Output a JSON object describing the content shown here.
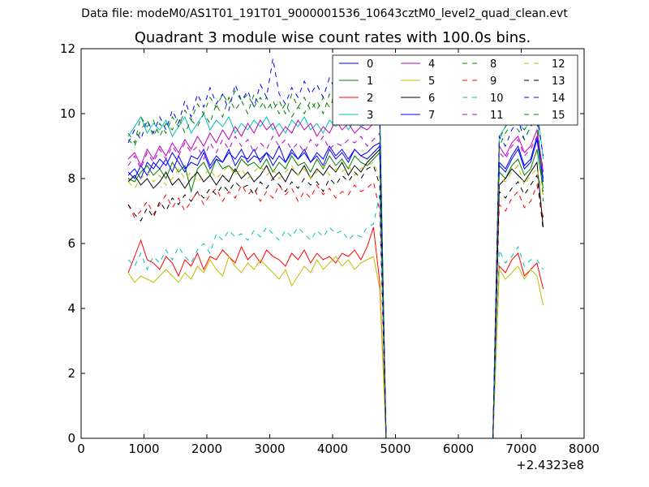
{
  "header": {
    "data_file": "Data file: modeM0/AS1T01_191T01_9000001536_10643cztM0_level2_quad_clean.evt"
  },
  "chart_data": {
    "type": "line",
    "title": "Quadrant 3 module wise count rates with 100.0s bins.",
    "xlabel": "",
    "ylabel": "",
    "x_offset_label": "+2.4323e8",
    "xlim": [
      0,
      8000
    ],
    "ylim": [
      0,
      12
    ],
    "xticks": [
      0,
      1000,
      2000,
      3000,
      4000,
      5000,
      6000,
      7000,
      8000
    ],
    "yticks": [
      0,
      2,
      4,
      6,
      8,
      10,
      12
    ],
    "grid": false,
    "legend_position": "top-right",
    "legend_columns": 4,
    "x_first": 750,
    "x_step": 100,
    "series": [
      {
        "name": "0",
        "color": "#0000ff",
        "dashed": false,
        "values": [
          8.1,
          8.3,
          8.0,
          8.5,
          8.3,
          8.6,
          8.4,
          8.8,
          8.5,
          8.2,
          8.7,
          8.6,
          8.9,
          8.4,
          8.7,
          8.5,
          8.8,
          8.6,
          8.9,
          8.5,
          8.7,
          8.6,
          8.8,
          8.4,
          8.7,
          8.5,
          8.9,
          8.6,
          8.8,
          8.5,
          8.7,
          8.4,
          8.9,
          8.6,
          8.8,
          8.5,
          8.9,
          8.7,
          8.6,
          8.8,
          9.0,
          0,
          0,
          0,
          0,
          0,
          0,
          0,
          0,
          0,
          0,
          0,
          0,
          0,
          0,
          0,
          0,
          0,
          0,
          8.4,
          8.2,
          8.6,
          8.9,
          8.3,
          8.5,
          9.2,
          7.9
        ]
      },
      {
        "name": "1",
        "color": "#008000",
        "dashed": false,
        "values": [
          8.0,
          7.9,
          8.2,
          8.4,
          8.1,
          8.3,
          8.0,
          8.5,
          8.2,
          8.4,
          7.6,
          8.3,
          8.5,
          8.1,
          8.6,
          8.3,
          8.4,
          8.2,
          8.6,
          8.4,
          8.5,
          8.3,
          8.6,
          8.2,
          8.5,
          8.3,
          8.7,
          8.4,
          8.5,
          8.2,
          8.6,
          8.3,
          8.7,
          8.4,
          8.6,
          8.3,
          8.7,
          8.5,
          8.4,
          8.6,
          8.8,
          0,
          0,
          0,
          0,
          0,
          0,
          0,
          0,
          0,
          0,
          0,
          0,
          0,
          0,
          0,
          0,
          0,
          0,
          8.2,
          8.0,
          8.4,
          8.6,
          8.1,
          8.3,
          8.9,
          7.7
        ]
      },
      {
        "name": "2",
        "color": "#ff0000",
        "dashed": false,
        "values": [
          5.1,
          5.6,
          6.1,
          5.5,
          5.4,
          5.2,
          5.6,
          5.4,
          5.0,
          5.5,
          5.3,
          5.7,
          5.2,
          5.6,
          5.5,
          5.8,
          5.6,
          5.4,
          5.9,
          5.5,
          5.7,
          5.4,
          5.8,
          5.6,
          5.5,
          5.3,
          5.7,
          5.5,
          5.8,
          5.4,
          5.7,
          5.5,
          5.6,
          5.4,
          5.7,
          5.6,
          5.8,
          5.5,
          5.9,
          6.5,
          4.8,
          0,
          0,
          0,
          0,
          0,
          0,
          0,
          0,
          0,
          0,
          0,
          0,
          0,
          0,
          0,
          0,
          0,
          0,
          5.3,
          5.1,
          5.5,
          5.7,
          5.0,
          5.2,
          5.4,
          4.6
        ]
      },
      {
        "name": "3",
        "color": "#00bfbf",
        "dashed": false,
        "values": [
          9.3,
          9.6,
          9.9,
          9.4,
          9.7,
          9.5,
          9.8,
          9.3,
          9.6,
          9.9,
          9.4,
          9.7,
          10.0,
          9.5,
          9.8,
          9.6,
          9.9,
          9.4,
          9.7,
          9.5,
          9.8,
          9.6,
          9.9,
          9.5,
          9.7,
          9.4,
          9.8,
          9.6,
          9.9,
          9.5,
          9.7,
          9.4,
          9.8,
          9.6,
          9.9,
          9.5,
          9.8,
          9.6,
          9.7,
          9.9,
          10.3,
          0,
          0,
          0,
          0,
          0,
          0,
          0,
          0,
          0,
          0,
          0,
          0,
          0,
          0,
          0,
          0,
          0,
          0,
          9.3,
          9.6,
          9.9,
          9.7,
          9.5,
          9.8,
          10.2,
          8.6
        ]
      },
      {
        "name": "4",
        "color": "#bf00bf",
        "dashed": false,
        "values": [
          8.6,
          8.8,
          8.4,
          8.9,
          8.6,
          9.0,
          8.7,
          9.1,
          8.8,
          9.2,
          8.9,
          9.3,
          9.0,
          9.4,
          9.1,
          9.5,
          9.2,
          9.6,
          9.3,
          9.7,
          9.4,
          9.8,
          9.5,
          9.7,
          9.3,
          9.6,
          9.4,
          9.8,
          9.5,
          9.7,
          9.3,
          9.6,
          9.4,
          9.8,
          9.5,
          9.7,
          9.4,
          9.6,
          9.5,
          9.7,
          9.9,
          0,
          0,
          0,
          0,
          0,
          0,
          0,
          0,
          0,
          0,
          0,
          0,
          0,
          0,
          0,
          0,
          0,
          0,
          9.0,
          8.7,
          9.1,
          9.3,
          8.8,
          9.0,
          9.5,
          8.2
        ]
      },
      {
        "name": "5",
        "color": "#bfbf00",
        "dashed": false,
        "values": [
          5.1,
          4.8,
          5.0,
          4.9,
          4.8,
          5.0,
          5.2,
          5.0,
          4.8,
          5.1,
          4.9,
          5.3,
          5.1,
          5.5,
          5.2,
          5.0,
          5.6,
          5.3,
          5.1,
          5.4,
          5.2,
          5.5,
          5.3,
          5.1,
          4.9,
          5.2,
          4.7,
          5.0,
          5.3,
          5.1,
          5.5,
          5.2,
          5.4,
          5.6,
          5.3,
          5.5,
          5.2,
          5.4,
          5.5,
          5.6,
          4.6,
          0,
          0,
          0,
          0,
          0,
          0,
          0,
          0,
          0,
          0,
          0,
          0,
          0,
          0,
          0,
          0,
          0,
          0,
          5.2,
          4.9,
          5.1,
          5.3,
          4.9,
          5.2,
          5.0,
          4.1
        ]
      },
      {
        "name": "6",
        "color": "#000000",
        "dashed": false,
        "values": [
          7.9,
          8.1,
          7.8,
          8.0,
          7.7,
          7.9,
          8.2,
          7.8,
          8.0,
          7.7,
          8.0,
          8.2,
          7.9,
          8.1,
          7.8,
          8.1,
          7.9,
          8.3,
          8.0,
          8.2,
          7.9,
          8.1,
          8.4,
          8.0,
          8.2,
          7.9,
          8.3,
          8.1,
          8.4,
          8.0,
          8.3,
          8.1,
          8.4,
          8.2,
          8.5,
          8.1,
          8.4,
          8.2,
          8.5,
          8.7,
          8.9,
          0,
          0,
          0,
          0,
          0,
          0,
          0,
          0,
          0,
          0,
          0,
          0,
          0,
          0,
          0,
          0,
          0,
          0,
          7.8,
          8.0,
          8.3,
          8.1,
          7.9,
          8.2,
          8.5,
          6.5
        ]
      },
      {
        "name": "7",
        "color": "#0000ff",
        "dashed": false,
        "values": [
          8.2,
          8.0,
          8.4,
          8.1,
          8.5,
          8.3,
          8.6,
          8.2,
          8.7,
          8.3,
          8.5,
          8.4,
          8.8,
          8.3,
          8.6,
          8.5,
          8.9,
          8.4,
          8.7,
          8.6,
          8.9,
          8.5,
          8.8,
          8.6,
          9.0,
          8.5,
          8.8,
          8.6,
          8.9,
          8.5,
          8.8,
          8.6,
          9.0,
          8.7,
          8.9,
          8.6,
          8.9,
          8.7,
          8.8,
          9.0,
          9.1,
          0,
          0,
          0,
          0,
          0,
          0,
          0,
          0,
          0,
          0,
          0,
          0,
          0,
          0,
          0,
          0,
          0,
          0,
          8.5,
          8.3,
          8.7,
          9.0,
          8.4,
          8.6,
          9.3,
          8.0
        ]
      },
      {
        "name": "8",
        "color": "#008000",
        "dashed": true,
        "values": [
          9.4,
          9.1,
          9.9,
          9.6,
          9.8,
          9.3,
          9.7,
          9.5,
          9.9,
          9.4,
          9.8,
          9.6,
          10.0,
          9.7,
          10.3,
          9.9,
          10.5,
          10.1,
          10.4,
          10.0,
          10.6,
          10.2,
          10.5,
          10.1,
          10.4,
          10.0,
          10.6,
          10.2,
          10.5,
          10.1,
          10.4,
          10.0,
          10.6,
          10.2,
          10.5,
          10.1,
          10.4,
          10.2,
          10.5,
          10.6,
          10.0,
          0,
          0,
          0,
          0,
          0,
          0,
          0,
          0,
          0,
          0,
          0,
          0,
          0,
          0,
          0,
          0,
          0,
          0,
          9.2,
          9.6,
          9.9,
          9.7,
          9.5,
          9.8,
          10.0,
          7.3
        ]
      },
      {
        "name": "9",
        "color": "#ff0000",
        "dashed": true,
        "values": [
          7.2,
          6.8,
          7.0,
          7.3,
          6.9,
          7.2,
          7.5,
          7.1,
          7.4,
          7.0,
          7.3,
          7.6,
          7.2,
          7.5,
          7.7,
          7.3,
          7.6,
          7.4,
          7.8,
          7.5,
          7.7,
          7.3,
          7.6,
          7.4,
          7.8,
          7.5,
          7.7,
          7.3,
          7.6,
          7.4,
          7.8,
          7.5,
          7.7,
          7.4,
          7.6,
          7.5,
          7.8,
          7.6,
          7.7,
          7.9,
          7.0,
          0,
          0,
          0,
          0,
          0,
          0,
          0,
          0,
          0,
          0,
          0,
          0,
          0,
          0,
          0,
          0,
          0,
          0,
          7.2,
          7.0,
          7.4,
          7.6,
          7.1,
          7.3,
          7.8,
          6.8
        ]
      },
      {
        "name": "10",
        "color": "#00bfbf",
        "dashed": true,
        "values": [
          5.5,
          5.3,
          5.7,
          5.2,
          5.6,
          5.4,
          5.8,
          5.5,
          5.9,
          5.6,
          5.4,
          5.8,
          6.0,
          5.7,
          6.3,
          6.1,
          6.4,
          6.2,
          6.3,
          6.1,
          6.4,
          6.2,
          6.5,
          6.3,
          6.1,
          6.4,
          6.2,
          6.5,
          6.3,
          6.1,
          6.4,
          6.2,
          6.5,
          6.3,
          6.4,
          6.1,
          6.3,
          6.2,
          6.5,
          6.6,
          7.5,
          0,
          0,
          0,
          0,
          0,
          0,
          0,
          0,
          0,
          0,
          0,
          0,
          0,
          0,
          0,
          0,
          0,
          0,
          5.8,
          5.4,
          5.6,
          5.9,
          5.3,
          5.5,
          5.5,
          5.2
        ]
      },
      {
        "name": "11",
        "color": "#bf00bf",
        "dashed": true,
        "values": [
          8.4,
          8.7,
          8.3,
          8.8,
          8.5,
          8.9,
          8.6,
          9.0,
          8.7,
          9.1,
          8.8,
          9.0,
          8.6,
          9.1,
          8.8,
          9.2,
          8.9,
          9.3,
          9.0,
          9.2,
          8.8,
          9.1,
          8.9,
          9.3,
          9.0,
          9.2,
          8.9,
          9.1,
          8.8,
          9.2,
          9.0,
          9.3,
          8.9,
          9.1,
          9.0,
          9.2,
          9.1,
          9.3,
          9.0,
          9.2,
          9.4,
          0,
          0,
          0,
          0,
          0,
          0,
          0,
          0,
          0,
          0,
          0,
          0,
          0,
          0,
          0,
          0,
          0,
          0,
          8.8,
          8.6,
          9.0,
          9.2,
          8.7,
          8.9,
          9.3,
          8.3
        ]
      },
      {
        "name": "12",
        "color": "#bfbf00",
        "dashed": true,
        "values": [
          7.9,
          7.7,
          8.0,
          8.2,
          7.9,
          8.1,
          7.8,
          8.0,
          8.3,
          8.0,
          8.2,
          7.9,
          8.1,
          8.3,
          8.0,
          8.2,
          8.4,
          8.1,
          8.3,
          8.0,
          8.2,
          8.4,
          8.1,
          8.3,
          8.0,
          8.2,
          8.4,
          8.1,
          8.3,
          8.0,
          8.2,
          8.4,
          8.1,
          8.3,
          8.2,
          8.4,
          8.1,
          8.3,
          8.4,
          8.5,
          8.0,
          0,
          0,
          0,
          0,
          0,
          0,
          0,
          0,
          0,
          0,
          0,
          0,
          0,
          0,
          0,
          0,
          0,
          0,
          8.0,
          7.9,
          8.2,
          8.4,
          7.8,
          8.1,
          8.3,
          7.5
        ]
      },
      {
        "name": "13",
        "color": "#000000",
        "dashed": true,
        "values": [
          7.2,
          6.9,
          6.7,
          7.1,
          6.8,
          7.3,
          7.0,
          7.4,
          7.2,
          7.5,
          7.3,
          7.6,
          7.4,
          7.7,
          7.5,
          7.8,
          7.6,
          7.9,
          7.7,
          7.8,
          7.5,
          7.9,
          7.7,
          8.0,
          7.8,
          7.6,
          7.9,
          7.7,
          8.0,
          7.8,
          7.9,
          7.6,
          8.0,
          7.8,
          8.1,
          7.9,
          8.2,
          8.0,
          8.3,
          8.4,
          7.8,
          0,
          0,
          0,
          0,
          0,
          0,
          0,
          0,
          0,
          0,
          0,
          0,
          0,
          0,
          0,
          0,
          0,
          0,
          7.6,
          7.4,
          7.7,
          7.9,
          7.5,
          7.8,
          8.1,
          6.4
        ]
      },
      {
        "name": "14",
        "color": "#0000ff",
        "dashed": true,
        "values": [
          9.1,
          9.5,
          9.2,
          9.8,
          9.4,
          9.9,
          9.5,
          10.1,
          9.7,
          10.4,
          9.9,
          10.6,
          10.2,
          10.8,
          10.3,
          10.6,
          10.1,
          10.9,
          10.4,
          10.7,
          10.2,
          10.9,
          10.5,
          11.7,
          10.6,
          10.3,
          10.8,
          10.5,
          11.0,
          10.6,
          10.9,
          10.5,
          11.1,
          10.7,
          11.0,
          10.6,
          11.2,
          10.8,
          11.5,
          11.8,
          9.8,
          0,
          0,
          0,
          0,
          0,
          0,
          0,
          0,
          0,
          0,
          0,
          0,
          0,
          0,
          0,
          0,
          0,
          0,
          9.3,
          9.0,
          9.5,
          9.8,
          9.2,
          9.6,
          9.9,
          8.7
        ]
      },
      {
        "name": "15",
        "color": "#008000",
        "dashed": true,
        "values": [
          9.2,
          9.0,
          9.5,
          9.8,
          9.3,
          9.7,
          9.4,
          9.9,
          9.6,
          10.1,
          9.8,
          10.3,
          10.0,
          10.5,
          10.2,
          10.6,
          10.3,
          10.7,
          10.4,
          10.6,
          10.2,
          10.5,
          10.1,
          10.4,
          10.0,
          10.3,
          9.9,
          10.2,
          10.0,
          10.4,
          10.1,
          10.5,
          10.2,
          10.6,
          10.3,
          10.5,
          10.2,
          10.4,
          10.5,
          10.7,
          9.7,
          0,
          0,
          0,
          0,
          0,
          0,
          0,
          0,
          0,
          0,
          0,
          0,
          0,
          0,
          0,
          0,
          0,
          0,
          9.0,
          9.4,
          9.7,
          9.5,
          9.2,
          9.6,
          9.8,
          7.6
        ]
      }
    ]
  }
}
